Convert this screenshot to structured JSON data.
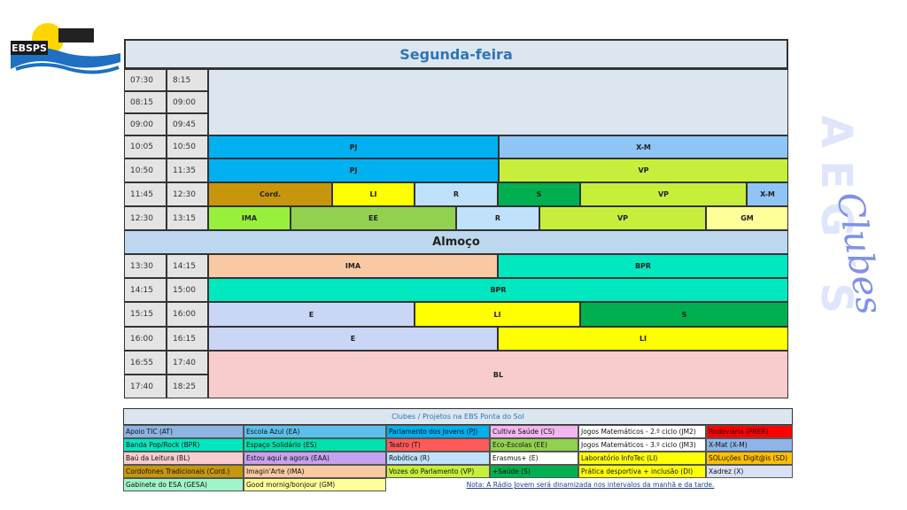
{
  "logo": "EBSPS",
  "side": {
    "letters": "AEG´S",
    "script": "Clubes"
  },
  "day": "Segunda-feira",
  "lunch": "Almoço",
  "times": [
    [
      "07:30",
      "8:15"
    ],
    [
      "08:15",
      "09:00"
    ],
    [
      "09:00",
      "09:45"
    ],
    [
      "10:05",
      "10:50"
    ],
    [
      "10:50",
      "11:35"
    ],
    [
      "11:45",
      "12:30"
    ],
    [
      "12:30",
      "13:15"
    ],
    [
      "13:30",
      "14:15"
    ],
    [
      "14:15",
      "15:00"
    ],
    [
      "15:15",
      "16:00"
    ],
    [
      "16:00",
      "16:15"
    ],
    [
      "16:55",
      "17:40"
    ],
    [
      "17:40",
      "18:25"
    ]
  ],
  "blocks": [
    "PJ",
    "X-M",
    "PJ",
    "VP",
    "Cord.",
    "LI",
    "R",
    "S",
    "VP",
    "X-M",
    "IMA",
    "EE",
    "R",
    "VP",
    "GM",
    "IMA",
    "BPR",
    "BPR",
    "E",
    "LI",
    "S",
    "E",
    "LI",
    "BL"
  ],
  "legend": {
    "title": "Clubes / Projetos na EBS Ponta do Sol",
    "rows": [
      [
        "Apoio TIC (AT)",
        "Escola Azul (EA)",
        "Parlamento dos Jovens (PJ)",
        "Cultiva Saúde (CS)",
        "Jogos Matemáticos - 2.º ciclo (JM2)",
        "Rodoviária (PRER)"
      ],
      [
        "Banda Pop/Rock (BPR)",
        "Espaço Solidário (ES)",
        "Teatro (T)",
        "Eco-Escolas (EE)",
        "Jogos Matemáticos - 3.º ciclo (JM3)",
        "X-Mat (X-M)"
      ],
      [
        "Baú da Leitura (BL)",
        "Estou aqui e agora (EAA)",
        "Robótica (R)",
        "Erasmus+ (E)",
        "Laboratório InfoTec (LI)",
        "SOLuções Digit@is (SD)"
      ],
      [
        "Cordofones Tradicionais (Cord.)",
        "Imagin'Arte (IMA)",
        "Vozes do Parlamento (VP)",
        "+Saúde (S)",
        "Prática desportiva + inclusão (DI)",
        "Xadrez (X)"
      ],
      [
        "Gabinete do ESA (GESA)",
        "Good mornig/bonjour (GM)"
      ]
    ],
    "note": "Nota: A Rádio Jovem será dinamizada nos intervalos da manhã e da tarde."
  }
}
